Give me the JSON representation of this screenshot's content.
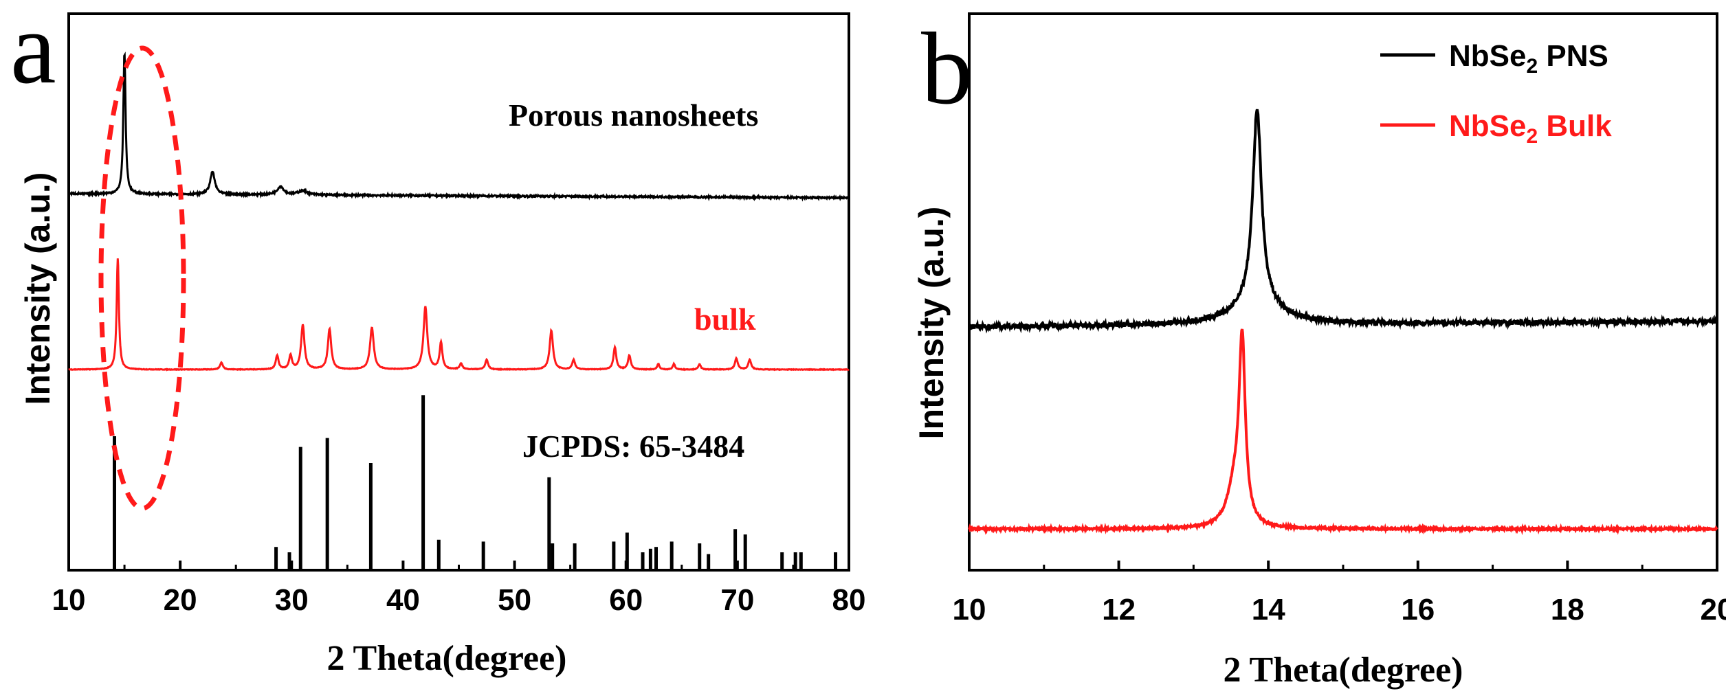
{
  "chart_data": [
    {
      "panel": "a",
      "type": "line",
      "xlabel": "2 Theta(degree)",
      "ylabel": "Intensity (a.u.)",
      "xlim": [
        10,
        80
      ],
      "xticks": [
        "10",
        "20",
        "30",
        "40",
        "50",
        "60",
        "70",
        "80"
      ],
      "highlight_region": {
        "x_range": [
          12.5,
          18.5
        ],
        "style": "dashed ellipse",
        "color": "#ff1a1a"
      },
      "series": [
        {
          "name": "Porous nanosheets",
          "label": "Porous nanosheets",
          "color": "#000000",
          "baseline": 0.9,
          "noise": 0.004,
          "peaks": [
            {
              "x": 15.0,
              "h": 0.69,
              "w": 0.12
            },
            {
              "x": 22.9,
              "h": 0.11,
              "w": 0.25
            },
            {
              "x": 29.0,
              "h": 0.04,
              "w": 0.35
            },
            {
              "x": 31.0,
              "h": 0.02,
              "w": 0.5
            }
          ]
        },
        {
          "name": "bulk",
          "label": "bulk",
          "color": "#ff1a1a",
          "baseline": 0.0,
          "noise": 0.002,
          "peaks": [
            {
              "x": 14.4,
              "h": 0.8,
              "w": 0.12
            },
            {
              "x": 23.7,
              "h": 0.05,
              "w": 0.15
            },
            {
              "x": 28.7,
              "h": 0.1,
              "w": 0.15
            },
            {
              "x": 29.9,
              "h": 0.1,
              "w": 0.15
            },
            {
              "x": 31.0,
              "h": 0.32,
              "w": 0.18
            },
            {
              "x": 33.4,
              "h": 0.29,
              "w": 0.18
            },
            {
              "x": 37.2,
              "h": 0.3,
              "w": 0.2
            },
            {
              "x": 42.0,
              "h": 0.45,
              "w": 0.2
            },
            {
              "x": 43.4,
              "h": 0.19,
              "w": 0.15
            },
            {
              "x": 45.2,
              "h": 0.04,
              "w": 0.15
            },
            {
              "x": 47.5,
              "h": 0.07,
              "w": 0.15
            },
            {
              "x": 53.3,
              "h": 0.28,
              "w": 0.18
            },
            {
              "x": 55.3,
              "h": 0.07,
              "w": 0.15
            },
            {
              "x": 59.0,
              "h": 0.16,
              "w": 0.15
            },
            {
              "x": 60.3,
              "h": 0.1,
              "w": 0.15
            },
            {
              "x": 62.9,
              "h": 0.04,
              "w": 0.12
            },
            {
              "x": 64.3,
              "h": 0.04,
              "w": 0.12
            },
            {
              "x": 66.6,
              "h": 0.04,
              "w": 0.12
            },
            {
              "x": 69.9,
              "h": 0.08,
              "w": 0.15
            },
            {
              "x": 71.1,
              "h": 0.07,
              "w": 0.15
            }
          ]
        }
      ],
      "reference": {
        "name": "JCPDS: 65-3484",
        "label": "JCPDS: 65-3484",
        "color": "#000000",
        "sticks": [
          {
            "x": 14.1,
            "h": 0.75
          },
          {
            "x": 28.6,
            "h": 0.13
          },
          {
            "x": 29.8,
            "h": 0.1
          },
          {
            "x": 30.8,
            "h": 0.69
          },
          {
            "x": 33.2,
            "h": 0.74
          },
          {
            "x": 37.1,
            "h": 0.6
          },
          {
            "x": 41.8,
            "h": 0.98
          },
          {
            "x": 43.2,
            "h": 0.17
          },
          {
            "x": 47.2,
            "h": 0.16
          },
          {
            "x": 53.1,
            "h": 0.52
          },
          {
            "x": 53.4,
            "h": 0.15
          },
          {
            "x": 55.4,
            "h": 0.15
          },
          {
            "x": 58.9,
            "h": 0.16
          },
          {
            "x": 60.1,
            "h": 0.21
          },
          {
            "x": 61.5,
            "h": 0.1
          },
          {
            "x": 62.2,
            "h": 0.12
          },
          {
            "x": 62.7,
            "h": 0.13
          },
          {
            "x": 64.1,
            "h": 0.16
          },
          {
            "x": 66.6,
            "h": 0.15
          },
          {
            "x": 67.4,
            "h": 0.09
          },
          {
            "x": 69.8,
            "h": 0.23
          },
          {
            "x": 70.7,
            "h": 0.2
          },
          {
            "x": 74.0,
            "h": 0.1
          },
          {
            "x": 75.2,
            "h": 0.1
          },
          {
            "x": 75.7,
            "h": 0.1
          },
          {
            "x": 78.8,
            "h": 0.1
          }
        ]
      }
    },
    {
      "panel": "b",
      "type": "line",
      "xlabel": "2 Theta(degree)",
      "ylabel": "Intensity (a.u.)",
      "xlim": [
        10,
        20
      ],
      "xticks": [
        "10",
        "12",
        "14",
        "16",
        "18",
        "20"
      ],
      "legend": {
        "position": "top-right"
      },
      "series": [
        {
          "name": "NbSe2 PNS",
          "legend_label": "NbSe₂ PNS",
          "color": "#000000",
          "baseline": 0.56,
          "slope": 0.015,
          "noise": 0.006,
          "peaks": [
            {
              "x": 13.85,
              "h": 0.5,
              "w": 0.07
            },
            {
              "x": 13.85,
              "h": 0.06,
              "w": 0.35
            }
          ]
        },
        {
          "name": "NbSe2 Bulk",
          "legend_label": "NbSe₂ Bulk",
          "color": "#ff1a1a",
          "baseline": 0.0,
          "noise": 0.003,
          "peaks": [
            {
              "x": 13.65,
              "h": 0.55,
              "w": 0.05
            },
            {
              "x": 13.55,
              "h": 0.12,
              "w": 0.12
            }
          ]
        }
      ]
    }
  ],
  "panel_labels": [
    "a",
    "b"
  ]
}
